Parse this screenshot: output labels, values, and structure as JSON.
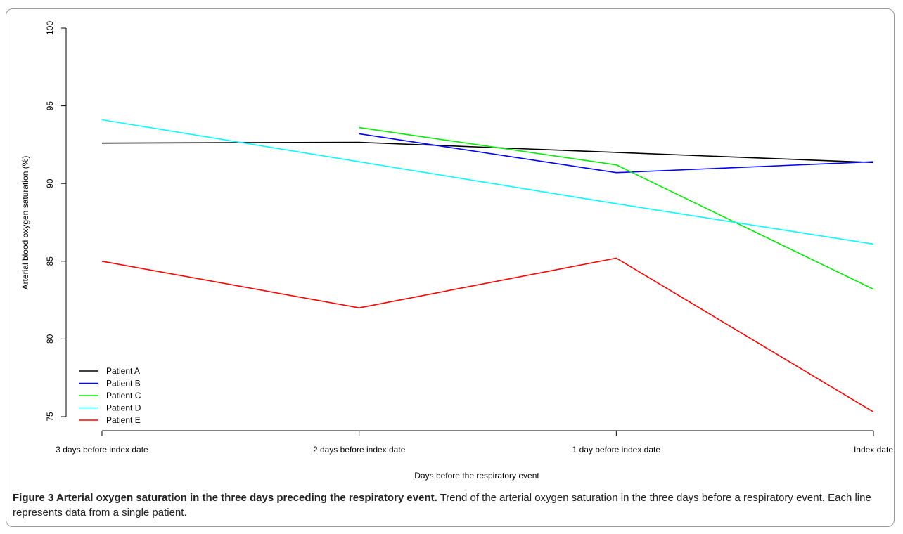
{
  "chart_data": {
    "type": "line",
    "categories": [
      "3 days before index date",
      "2 days before index date",
      "1 day before index date",
      "Index date"
    ],
    "xlabel": "Days before the respiratory event",
    "ylabel": "Arterial blood oxygen saturation (%)",
    "ylim": [
      75,
      100
    ],
    "yticks": [
      "75",
      "80",
      "85",
      "90",
      "95",
      "100"
    ],
    "legend_position": "bottom-left",
    "grid": false,
    "series": [
      {
        "name": "Patient A",
        "color": "#000000",
        "values": [
          92.6,
          92.65,
          92.0,
          91.35
        ]
      },
      {
        "name": "Patient B",
        "color": "#0000ff",
        "values": [
          null,
          93.2,
          90.7,
          91.4
        ]
      },
      {
        "name": "Patient C",
        "color": "#00ee00",
        "values": [
          null,
          93.6,
          91.2,
          83.2
        ]
      },
      {
        "name": "Patient D",
        "color": "#00ffff",
        "values": [
          94.1,
          91.4,
          88.7,
          86.1
        ]
      },
      {
        "name": "Patient E",
        "color": "#ff0000",
        "values": [
          85.0,
          82.0,
          85.2,
          75.3
        ]
      }
    ]
  },
  "caption": {
    "title": "Figure 3 Arterial oxygen saturation in the three days preceding the respiratory event.",
    "text": "Trend of the arterial oxygen saturation in the three days before a respiratory event. Each line represents data from a single patient."
  }
}
